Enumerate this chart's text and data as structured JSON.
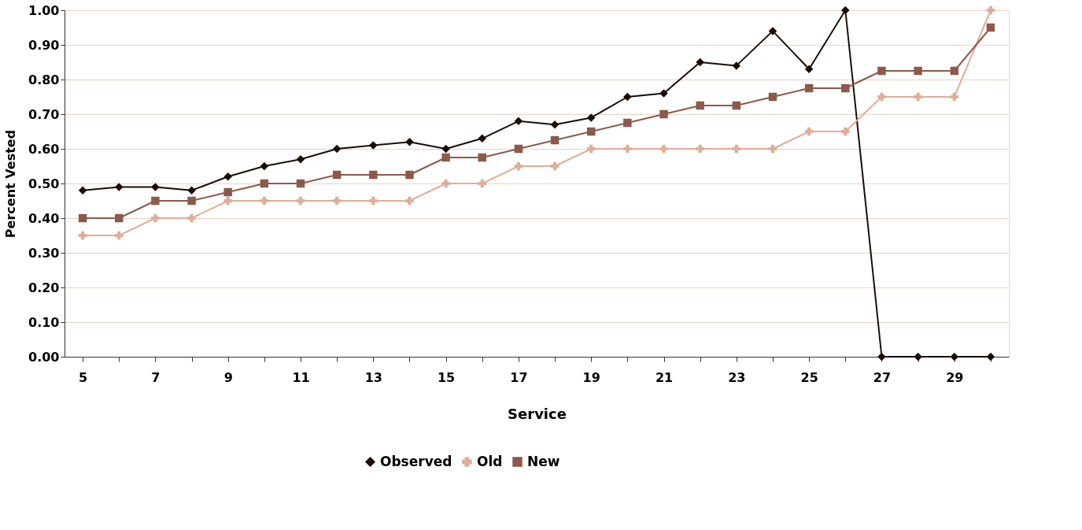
{
  "chart_data": {
    "type": "line",
    "xlabel": "Service",
    "ylabel": "Percent Vested",
    "categories": [
      "5",
      null,
      "7",
      null,
      "9",
      null,
      "11",
      null,
      "13",
      null,
      "15",
      null,
      "17",
      null,
      "19",
      null,
      "21",
      null,
      "23",
      null,
      "25",
      null,
      "27",
      null,
      "29",
      null
    ],
    "series": [
      {
        "name": "Observed",
        "color": "#1a0d08",
        "marker": "diamond",
        "values": [
          0.48,
          0.49,
          0.49,
          0.48,
          0.52,
          0.55,
          0.57,
          0.6,
          0.61,
          0.62,
          0.6,
          0.63,
          0.68,
          0.67,
          0.69,
          0.75,
          0.76,
          0.85,
          0.84,
          0.94,
          0.83,
          1.0,
          0,
          0,
          0,
          0
        ]
      },
      {
        "name": "Old",
        "color": "#e0ae98",
        "marker": "cross",
        "values": [
          0.35,
          0.35,
          0.4,
          0.4,
          0.45,
          0.45,
          0.45,
          0.45,
          0.45,
          0.45,
          0.5,
          0.5,
          0.55,
          0.55,
          0.6,
          0.6,
          0.6,
          0.6,
          0.6,
          0.6,
          0.65,
          0.65,
          0.75,
          0.75,
          0.75,
          1.0
        ]
      },
      {
        "name": "New",
        "color": "#8c5a4a",
        "marker": "square",
        "values": [
          0.4,
          0.4,
          0.45,
          0.45,
          0.475,
          0.5,
          0.5,
          0.525,
          0.525,
          0.525,
          0.575,
          0.575,
          0.6,
          0.625,
          0.65,
          0.675,
          0.7,
          0.725,
          0.725,
          0.75,
          0.775,
          0.775,
          0.825,
          0.825,
          0.825,
          0.95
        ]
      }
    ],
    "ylim": [
      0,
      1
    ],
    "yticks": [
      {
        "value": 0,
        "label": "0.00"
      },
      {
        "value": 0.1,
        "label": "0.10"
      },
      {
        "value": 0.2,
        "label": "0.20"
      },
      {
        "value": 0.3,
        "label": "0.30"
      },
      {
        "value": 0.4,
        "label": "0.40"
      },
      {
        "value": 0.5,
        "label": "0.50"
      },
      {
        "value": 0.6,
        "label": "0.60"
      },
      {
        "value": 0.7,
        "label": "0.70"
      },
      {
        "value": 0.8,
        "label": "0.80"
      },
      {
        "value": 0.9,
        "label": "0.90"
      },
      {
        "value": 1,
        "label": "1.00"
      }
    ],
    "grid": "y",
    "legend": "bottom",
    "line_style": "solid"
  }
}
